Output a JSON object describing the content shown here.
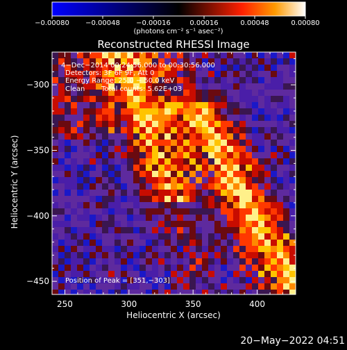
{
  "chart_data": {
    "type": "heatmap",
    "title": "Reconstructed RHESSI Image",
    "xlabel": "Heliocentric X (arcsec)",
    "ylabel": "Heliocentric Y (arcsec)",
    "xlim": [
      240,
      430
    ],
    "ylim": [
      -460,
      -275
    ],
    "x_ticks": [
      "250",
      "300",
      "350",
      "400"
    ],
    "x_tick_values": [
      250,
      300,
      350,
      400
    ],
    "y_ticks": [
      "−300",
      "−350",
      "−400",
      "−450"
    ],
    "y_tick_values": [
      -300,
      -350,
      -400,
      -450
    ],
    "grid": false,
    "colorbar": {
      "label": "(photons cm⁻² s⁻¹ asec⁻²)",
      "range": [
        -0.0008,
        0.0008
      ],
      "ticks": [
        "−0.00080",
        "−0.00048",
        "−0.00016",
        "0.00016",
        "0.00048",
        "0.00080"
      ],
      "tick_values": [
        -0.0008,
        -0.00048,
        -0.00016,
        0.00016,
        0.00048,
        0.0008
      ]
    },
    "annotations": [
      "4−Dec−2014 00:24:56.000 to 00:30:56.000",
      "Detectors: 3F 6F 9F, Att 0",
      "Energy Range: 25.0 − 50.0 keV",
      "Clean",
      "Total counts: 5.62E+03"
    ],
    "peak_label": "Position of Peak = [351,−303]",
    "peak": [
      351,
      -303
    ]
  },
  "timestamp": "20−May−2022 04:51"
}
